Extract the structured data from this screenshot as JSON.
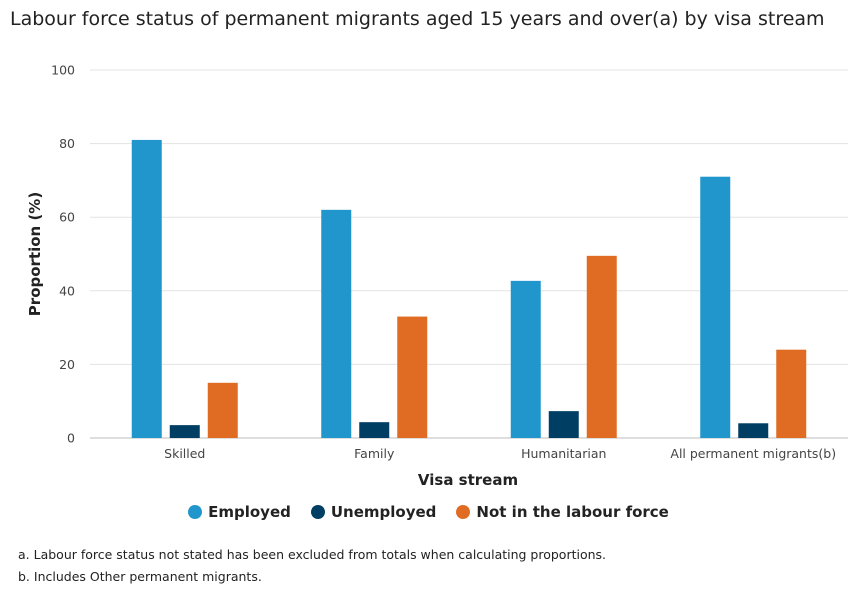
{
  "chart_data": {
    "type": "bar",
    "title": "Labour force status of permanent migrants aged 15 years and over(a) by visa stream",
    "xlabel": "Visa stream",
    "ylabel": "Proportion (%)",
    "ylim": [
      0,
      100
    ],
    "yticks": [
      0,
      20,
      40,
      60,
      80,
      100
    ],
    "grid": true,
    "legend_position": "bottom",
    "categories": [
      "Skilled",
      "Family",
      "Humanitarian",
      "All permanent migrants(b)"
    ],
    "series": [
      {
        "name": "Employed",
        "color": "#2196cc",
        "values": [
          81,
          62,
          42.7,
          71
        ]
      },
      {
        "name": "Unemployed",
        "color": "#003f63",
        "values": [
          3.5,
          4.3,
          7.3,
          4
        ]
      },
      {
        "name": "Not in the labour force",
        "color": "#e06c23",
        "values": [
          15,
          33,
          49.5,
          24
        ]
      }
    ]
  },
  "footnotes": {
    "a": "a. Labour force status not stated has been excluded from totals when calculating proportions.",
    "b": "b. Includes Other permanent migrants."
  }
}
